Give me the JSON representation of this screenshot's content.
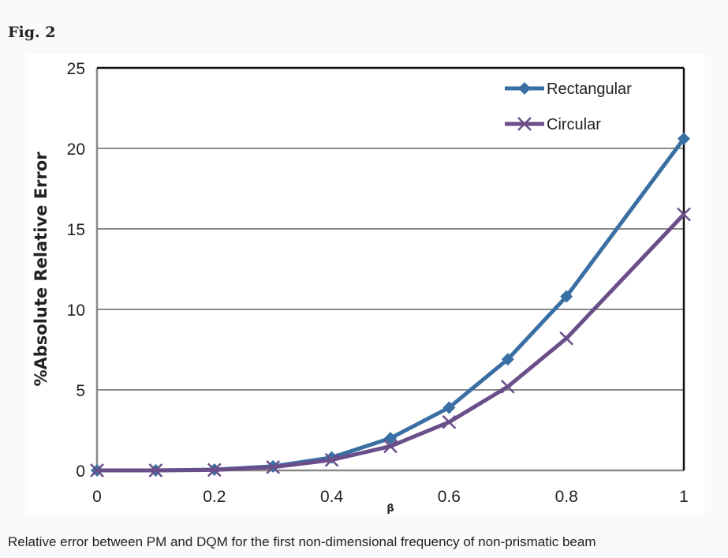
{
  "figure_label": "Fig. 2",
  "caption": "Relative error between PM and DQM for the first non-dimensional frequency of non-prismatic beam",
  "chart_data": {
    "type": "line",
    "title": "",
    "xlabel": "β",
    "ylabel": "%Absolute Relative Error",
    "xlim": [
      0,
      1
    ],
    "ylim": [
      0,
      25
    ],
    "xticks": [
      "0",
      "0.2",
      "0.4",
      "0.6",
      "0.8",
      "1"
    ],
    "yticks": [
      "0",
      "5",
      "10",
      "15",
      "20",
      "25"
    ],
    "grid": "horizontal",
    "legend_placement": "top-right",
    "x": [
      0,
      0.1,
      0.2,
      0.3,
      0.4,
      0.5,
      0.6,
      0.7,
      0.8,
      1.0
    ],
    "series": [
      {
        "name": "Rectangular",
        "marker": "diamond",
        "color": "#3a6fa3",
        "values": [
          0,
          0,
          0.05,
          0.25,
          0.8,
          2.0,
          3.9,
          6.9,
          10.8,
          20.6
        ]
      },
      {
        "name": "Circular",
        "marker": "x",
        "color": "#6a4e8a",
        "values": [
          0,
          0,
          0.03,
          0.2,
          0.65,
          1.5,
          3.0,
          5.2,
          8.2,
          15.9
        ]
      }
    ]
  }
}
